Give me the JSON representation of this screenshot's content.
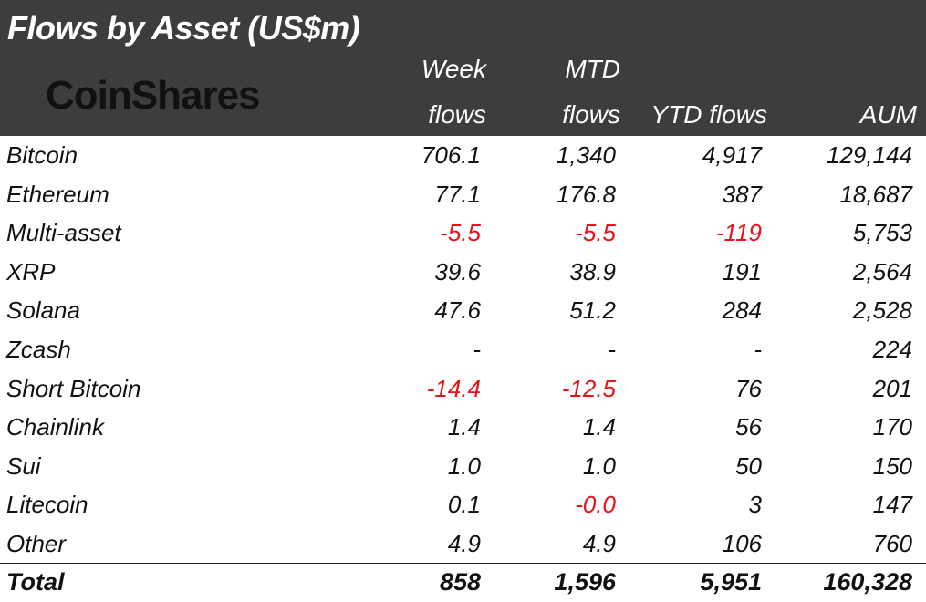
{
  "title": "Flows by Asset (US$m)",
  "logo_text": "CoinShares",
  "columns": {
    "week_line1": "Week",
    "week_line2": "flows",
    "mtd_line1": "MTD",
    "mtd_line2": "flows",
    "ytd": "YTD flows",
    "aum": "AUM"
  },
  "rows": [
    {
      "asset": "Bitcoin",
      "week": "706.1",
      "mtd": "1,340",
      "ytd": "4,917",
      "aum": "129,144"
    },
    {
      "asset": "Ethereum",
      "week": "77.1",
      "mtd": "176.8",
      "ytd": "387",
      "aum": "18,687"
    },
    {
      "asset": "Multi-asset",
      "week": "-5.5",
      "mtd": "-5.5",
      "ytd": "-119",
      "aum": "5,753"
    },
    {
      "asset": "XRP",
      "week": "39.6",
      "mtd": "38.9",
      "ytd": "191",
      "aum": "2,564"
    },
    {
      "asset": "Solana",
      "week": "47.6",
      "mtd": "51.2",
      "ytd": "284",
      "aum": "2,528"
    },
    {
      "asset": "Zcash",
      "week": "-",
      "mtd": "-",
      "ytd": "-",
      "aum": "224"
    },
    {
      "asset": "Short Bitcoin",
      "week": "-14.4",
      "mtd": "-12.5",
      "ytd": "76",
      "aum": "201"
    },
    {
      "asset": "Chainlink",
      "week": "1.4",
      "mtd": "1.4",
      "ytd": "56",
      "aum": "170"
    },
    {
      "asset": "Sui",
      "week": "1.0",
      "mtd": "1.0",
      "ytd": "50",
      "aum": "150"
    },
    {
      "asset": "Litecoin",
      "week": "0.1",
      "mtd": "-0.0",
      "ytd": "3",
      "aum": "147"
    },
    {
      "asset": "Other",
      "week": "4.9",
      "mtd": "4.9",
      "ytd": "106",
      "aum": "760"
    }
  ],
  "total": {
    "asset": "Total",
    "week": "858",
    "mtd": "1,596",
    "ytd": "5,951",
    "aum": "160,328"
  },
  "colors": {
    "header_bg": "#3d3d3d",
    "negative": "#e8121b",
    "text": "#111111"
  }
}
